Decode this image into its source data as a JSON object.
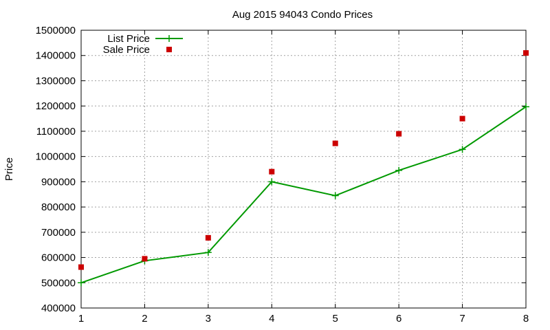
{
  "chart_data": {
    "type": "line",
    "title": "Aug 2015 94043 Condo Prices",
    "xlabel": "",
    "ylabel": "Price",
    "xlim": [
      1,
      8
    ],
    "ylim": [
      400000,
      1500000
    ],
    "x_ticks": [
      "1",
      "2",
      "3",
      "4",
      "5",
      "6",
      "7",
      "8"
    ],
    "y_ticks": [
      "400000",
      "500000",
      "600000",
      "700000",
      "800000",
      "900000",
      "1000000",
      "1100000",
      "1200000",
      "1300000",
      "1400000",
      "1500000"
    ],
    "grid": true,
    "legend_position": "top-left",
    "series": [
      {
        "name": "List Price",
        "style": "line-with-plus-markers",
        "color": "#009900",
        "x": [
          1,
          2,
          3,
          4,
          5,
          6,
          7,
          8
        ],
        "y": [
          500000,
          587000,
          620000,
          900000,
          845000,
          945000,
          1028000,
          1197000
        ]
      },
      {
        "name": "Sale Price",
        "style": "square-markers",
        "color": "#cc0000",
        "x": [
          1,
          2,
          3,
          4,
          5,
          6,
          7,
          8
        ],
        "y": [
          562000,
          595000,
          678000,
          940000,
          1052000,
          1090000,
          1150000,
          1410000
        ]
      }
    ]
  }
}
